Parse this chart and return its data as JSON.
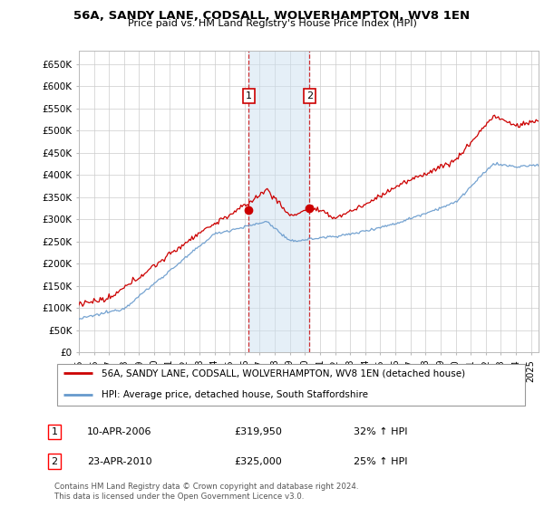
{
  "title": "56A, SANDY LANE, CODSALL, WOLVERHAMPTON, WV8 1EN",
  "subtitle": "Price paid vs. HM Land Registry's House Price Index (HPI)",
  "ylabel_ticks": [
    "£0",
    "£50K",
    "£100K",
    "£150K",
    "£200K",
    "£250K",
    "£300K",
    "£350K",
    "£400K",
    "£450K",
    "£500K",
    "£550K",
    "£600K",
    "£650K"
  ],
  "ylim": [
    0,
    680000
  ],
  "ytick_vals": [
    0,
    50000,
    100000,
    150000,
    200000,
    250000,
    300000,
    350000,
    400000,
    450000,
    500000,
    550000,
    600000,
    650000
  ],
  "xmin": 1995.0,
  "xmax": 2025.5,
  "sale1_x": 2006.27,
  "sale1_y": 319950,
  "sale2_x": 2010.31,
  "sale2_y": 325000,
  "sale1_label": "1",
  "sale2_label": "2",
  "red_color": "#cc0000",
  "blue_color": "#6699cc",
  "vline_color": "#cc0000",
  "background_color": "#ffffff",
  "grid_color": "#cccccc",
  "legend_entry1": "56A, SANDY LANE, CODSALL, WOLVERHAMPTON, WV8 1EN (detached house)",
  "legend_entry2": "HPI: Average price, detached house, South Staffordshire",
  "transaction1_date": "10-APR-2006",
  "transaction1_price": "£319,950",
  "transaction1_hpi": "32% ↑ HPI",
  "transaction2_date": "23-APR-2010",
  "transaction2_price": "£325,000",
  "transaction2_hpi": "25% ↑ HPI",
  "footer": "Contains HM Land Registry data © Crown copyright and database right 2024.\nThis data is licensed under the Open Government Licence v3.0."
}
